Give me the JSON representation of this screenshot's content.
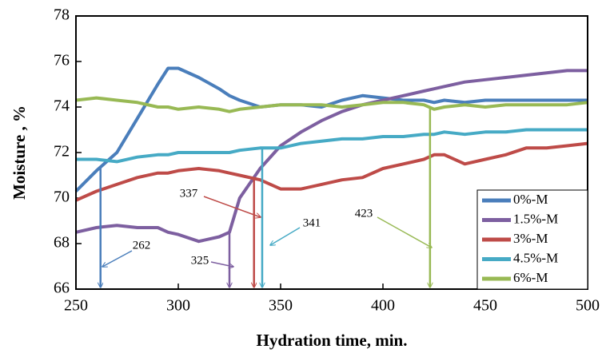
{
  "chart_data": {
    "type": "line",
    "x_label": "Hydration time, min.",
    "y_label": "Moisture , %",
    "x": [
      250,
      260,
      270,
      280,
      290,
      295,
      300,
      310,
      320,
      325,
      330,
      340,
      350,
      360,
      370,
      380,
      390,
      400,
      410,
      420,
      425,
      430,
      440,
      450,
      460,
      470,
      480,
      490,
      500
    ],
    "series": [
      {
        "name": "0%-M",
        "color": "#4a7ebb",
        "values": [
          70.3,
          71.2,
          72.0,
          73.5,
          75.0,
          75.7,
          75.7,
          75.3,
          74.8,
          74.5,
          74.3,
          74.0,
          74.1,
          74.1,
          74.0,
          74.3,
          74.5,
          74.4,
          74.3,
          74.3,
          74.2,
          74.3,
          74.2,
          74.3,
          74.3,
          74.3,
          74.3,
          74.3,
          74.3
        ]
      },
      {
        "name": "1.5%-M",
        "color": "#7d5fa0",
        "values": [
          68.5,
          68.7,
          68.8,
          68.7,
          68.7,
          68.5,
          68.4,
          68.1,
          68.3,
          68.5,
          70.0,
          71.3,
          72.3,
          72.9,
          73.4,
          73.8,
          74.1,
          74.3,
          74.5,
          74.7,
          74.8,
          74.9,
          75.1,
          75.2,
          75.3,
          75.4,
          75.5,
          75.6,
          75.6
        ]
      },
      {
        "name": "3%-M",
        "color": "#be4b48",
        "values": [
          69.9,
          70.3,
          70.6,
          70.9,
          71.1,
          71.1,
          71.2,
          71.3,
          71.2,
          71.1,
          71.0,
          70.8,
          70.4,
          70.4,
          70.6,
          70.8,
          70.9,
          71.3,
          71.5,
          71.7,
          71.9,
          71.9,
          71.5,
          71.7,
          71.9,
          72.2,
          72.2,
          72.3,
          72.4
        ]
      },
      {
        "name": "4.5%-M",
        "color": "#46aac5",
        "values": [
          71.7,
          71.7,
          71.6,
          71.8,
          71.9,
          71.9,
          72.0,
          72.0,
          72.0,
          72.0,
          72.1,
          72.2,
          72.2,
          72.4,
          72.5,
          72.6,
          72.6,
          72.7,
          72.7,
          72.8,
          72.8,
          72.9,
          72.8,
          72.9,
          72.9,
          73.0,
          73.0,
          73.0,
          73.0
        ]
      },
      {
        "name": "6%-M",
        "color": "#98b954",
        "values": [
          74.3,
          74.4,
          74.3,
          74.2,
          74.0,
          74.0,
          73.9,
          74.0,
          73.9,
          73.8,
          73.9,
          74.0,
          74.1,
          74.1,
          74.1,
          74.0,
          74.1,
          74.2,
          74.2,
          74.1,
          73.9,
          74.0,
          74.1,
          74.0,
          74.1,
          74.1,
          74.1,
          74.1,
          74.2
        ]
      }
    ],
    "annotations": [
      {
        "label": "262",
        "x": 262,
        "series": 0
      },
      {
        "label": "325",
        "x": 325,
        "series": 1
      },
      {
        "label": "337",
        "x": 337,
        "series": 2
      },
      {
        "label": "341",
        "x": 341,
        "series": 3
      },
      {
        "label": "423",
        "x": 423,
        "series": 4
      }
    ],
    "xlim": [
      250,
      500
    ],
    "ylim": [
      66,
      78
    ],
    "xticks": [
      250,
      300,
      350,
      400,
      450,
      500
    ],
    "yticks": [
      66,
      68,
      70,
      72,
      74,
      76,
      78
    ],
    "legend": "lower right"
  }
}
